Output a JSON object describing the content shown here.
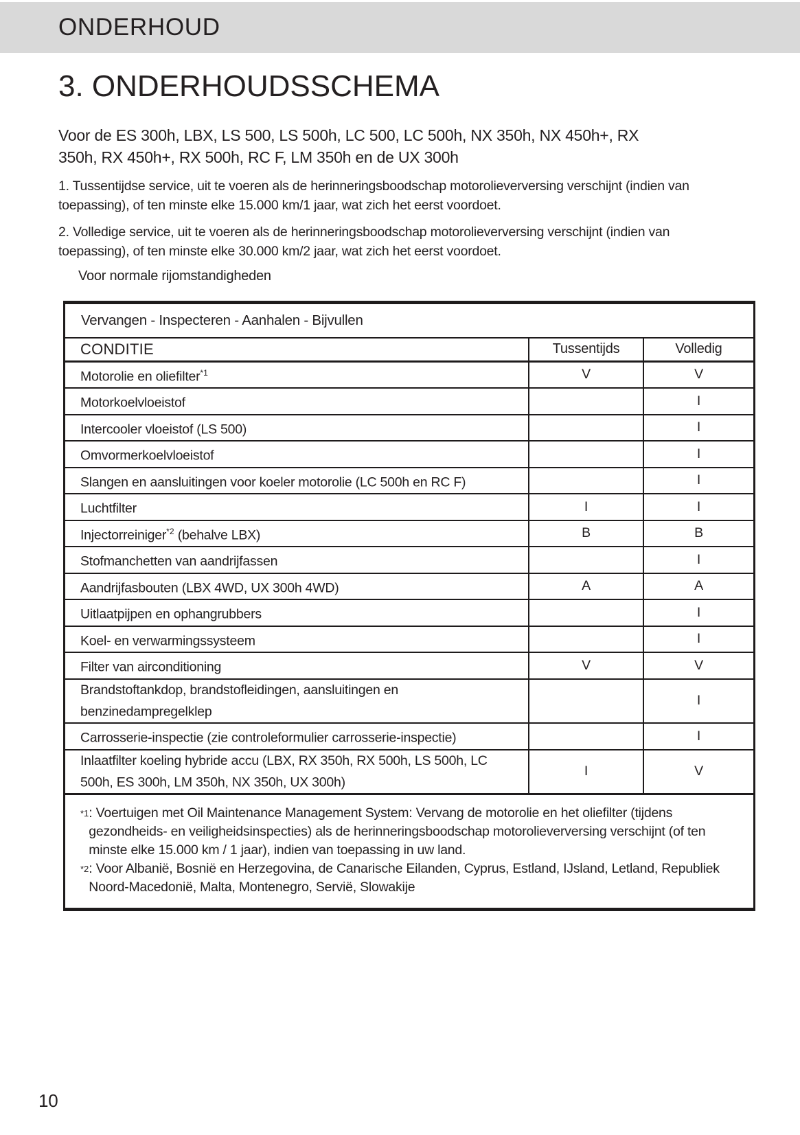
{
  "page": {
    "header": "ONDERHOUD",
    "title": "3. ONDERHOUDSSCHEMA",
    "subtitle": "Voor de ES 300h, LBX, LS 500, LS 500h, LC 500, LC 500h, NX 350h, NX 450h+, RX\n350h, RX 450h+, RX 500h, RC F, LM 350h en de UX 300h",
    "paragraphs": [
      "1. Tussentijdse service, uit te voeren als de herinneringsboodschap motorolieverversing verschijnt (indien van\ntoepassing), of ten minste elke 15.000 km/1 jaar, wat zich het eerst voordoet.",
      "2. Volledige service, uit te voeren als de herinneringsboodschap motorolieverversing verschijnt (indien van\ntoepassing), of ten minste elke 30.000 km/2 jaar, wat zich het eerst voordoet."
    ],
    "table_label": "Voor normale rijomstandigheden",
    "page_number": "10",
    "colors": {
      "header_bar": "#d9d9d9",
      "border": "#1e1b1c",
      "text": "#242021"
    }
  },
  "table": {
    "legend": "Vervangen - Inspecteren - Aanhalen - Bijvullen",
    "columns": [
      "CONDITIE",
      "Tussentijds",
      "Volledig"
    ],
    "rows": [
      {
        "pre": "Motorolie en oliefilter",
        "sup": "*1",
        "post": "",
        "tussentijds": "V",
        "volledig": "V"
      },
      {
        "pre": "Motorkoelvloeistof",
        "sup": "",
        "post": "",
        "tussentijds": "",
        "volledig": "I"
      },
      {
        "pre": "Intercooler vloeistof (LS 500)",
        "sup": "",
        "post": "",
        "tussentijds": "",
        "volledig": "I"
      },
      {
        "pre": "Omvormerkoelvloeistof",
        "sup": "",
        "post": "",
        "tussentijds": "",
        "volledig": "I"
      },
      {
        "pre": "Slangen en aansluitingen voor koeler motorolie (LC 500h en RC F)",
        "sup": "",
        "post": "",
        "tussentijds": "",
        "volledig": "I"
      },
      {
        "pre": "Luchtfilter",
        "sup": "",
        "post": "",
        "tussentijds": "I",
        "volledig": "I"
      },
      {
        "pre": "Injectorreiniger",
        "sup": "*2",
        "post": " (behalve LBX)",
        "tussentijds": "B",
        "volledig": "B"
      },
      {
        "pre": "Stofmanchetten van aandrijfassen",
        "sup": "",
        "post": "",
        "tussentijds": "",
        "volledig": "I"
      },
      {
        "pre": "Aandrijfasbouten (LBX 4WD, UX 300h 4WD)",
        "sup": "",
        "post": "",
        "tussentijds": "A",
        "volledig": "A"
      },
      {
        "pre": "Uitlaatpijpen en ophangrubbers",
        "sup": "",
        "post": "",
        "tussentijds": "",
        "volledig": "I"
      },
      {
        "pre": "Koel- en verwarmingssysteem",
        "sup": "",
        "post": "",
        "tussentijds": "",
        "volledig": "I"
      },
      {
        "pre": "Filter van airconditioning",
        "sup": "",
        "post": "",
        "tussentijds": "V",
        "volledig": "V"
      },
      {
        "pre": "Brandstoftankdop, brandstofleidingen, aansluitingen en\nbenzinedampregelklep",
        "sup": "",
        "post": "",
        "tussentijds": "",
        "volledig": "I"
      },
      {
        "pre": "Carrosserie-inspectie (zie controleformulier carrosserie-inspectie)",
        "sup": "",
        "post": "",
        "tussentijds": "",
        "volledig": "I"
      },
      {
        "pre": "Inlaatfilter koeling hybride accu (LBX, RX 350h, RX 500h, LS 500h, LC\n500h, ES 300h, LM 350h, NX 350h, UX 300h)",
        "sup": "",
        "post": "",
        "tussentijds": "I",
        "volledig": "V"
      }
    ],
    "footnotes": [
      {
        "marker": "*1",
        "text": ": Voertuigen met Oil Maintenance Management System: Vervang de motorolie en het oliefilter (tijdens\ngezondheids- en veiligheidsinspecties) als de herinneringsboodschap motorolieverversing verschijnt (of ten\nminste elke 15.000 km / 1 jaar), indien van toepassing in uw land."
      },
      {
        "marker": "*2",
        "text": ": Voor Albanië, Bosnië en Herzegovina, de Canarische Eilanden, Cyprus, Estland, IJsland, Letland, Republiek\nNoord-Macedonië, Malta, Montenegro, Servië, Slowakije"
      }
    ]
  }
}
